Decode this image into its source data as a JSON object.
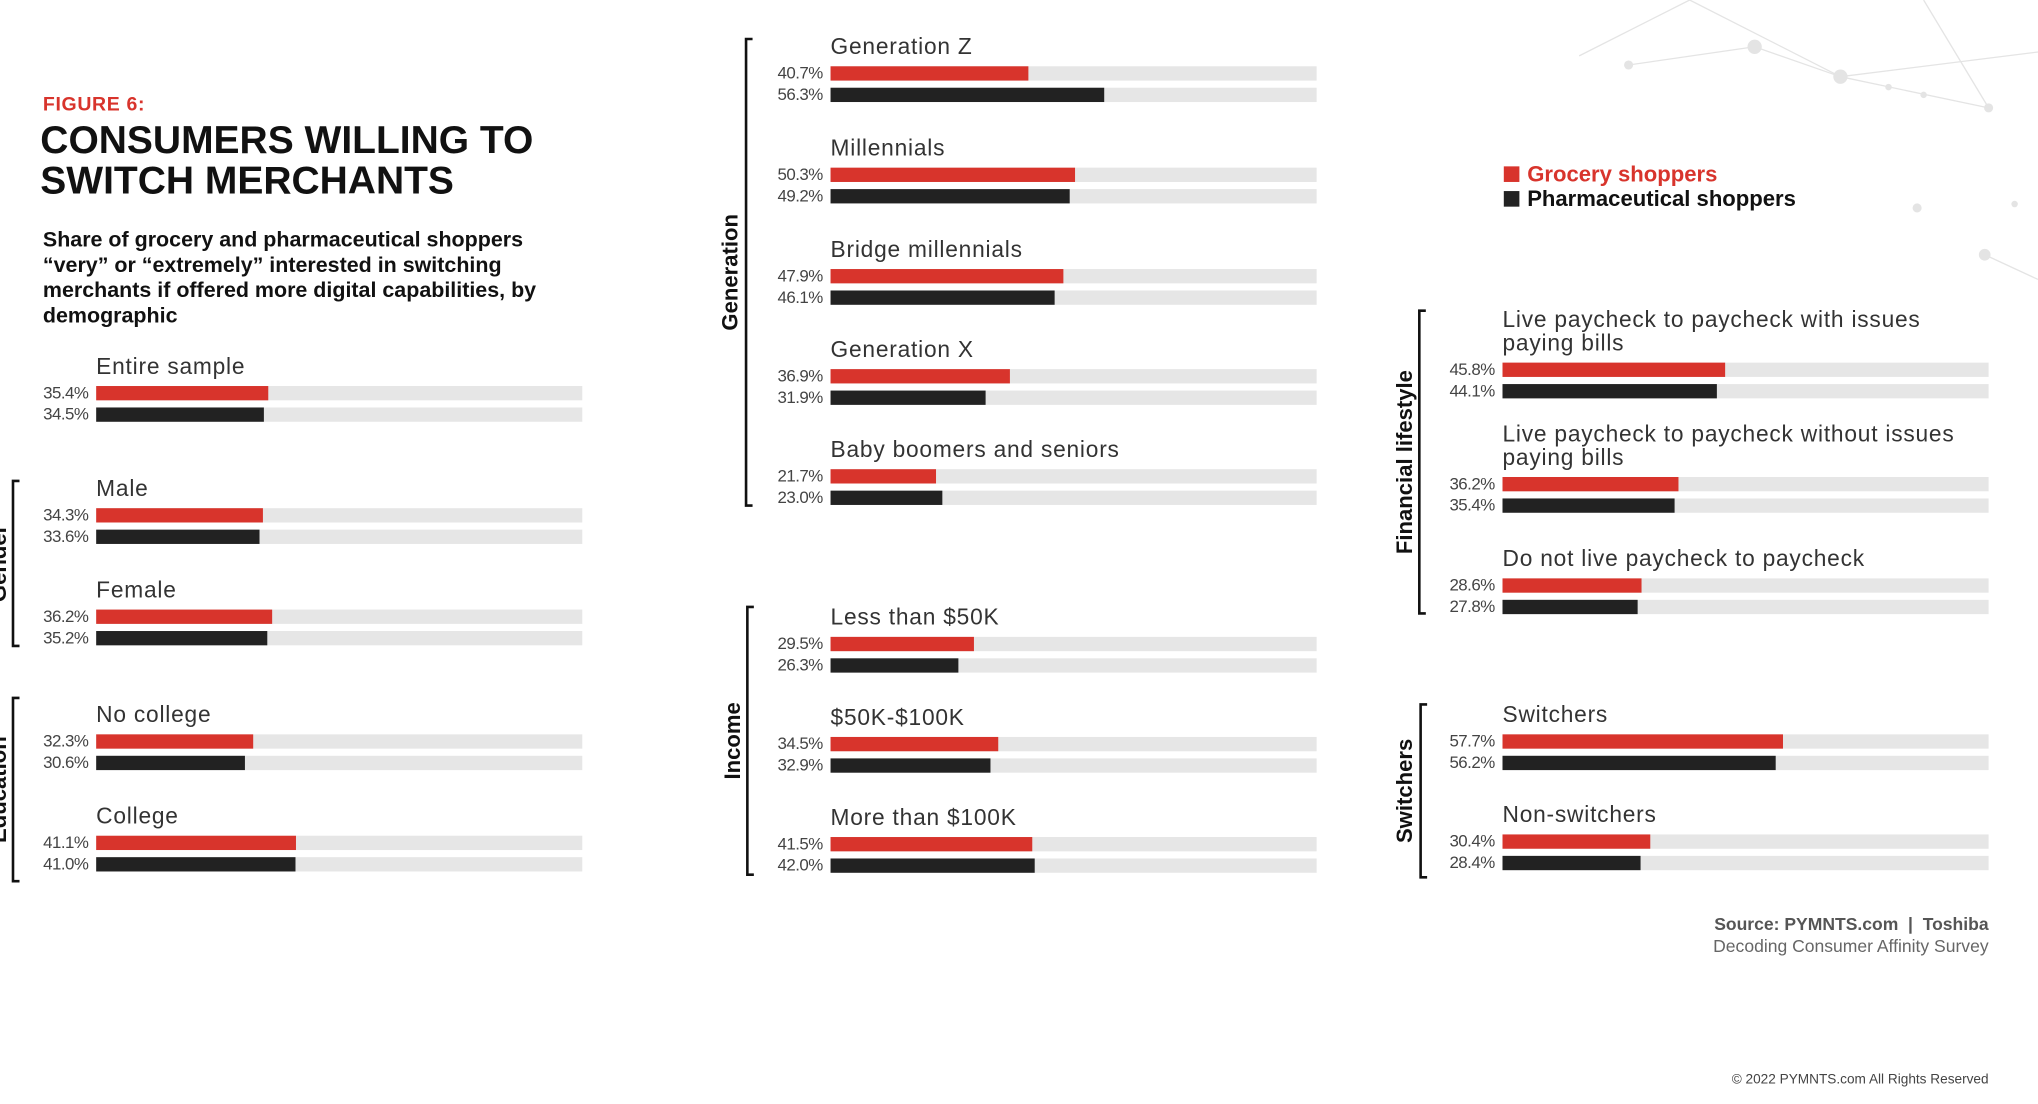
{
  "chart_data": {
    "type": "bar",
    "figure_label": "FIGURE 6:",
    "title": "CONSUMERS WILLING TO SWITCH MERCHANTS",
    "subtitle": "Share of grocery and pharmaceutical shoppers “very” or “extremely” interested in switching merchants if offered more digital capabilities, by demographic",
    "xlim": [
      0,
      100
    ],
    "legend": [
      {
        "name": "Grocery shoppers",
        "color": "#d8342c"
      },
      {
        "name": "Pharmaceutical shoppers",
        "color": "#222222"
      }
    ],
    "groups": [
      {
        "categories": [
          "Entire sample"
        ],
        "series": [
          {
            "values": [
              35.4
            ],
            "value_labels": [
              "35.4%"
            ]
          },
          {
            "values": [
              34.5
            ],
            "value_labels": [
              "34.5%"
            ]
          }
        ]
      },
      {
        "name": "Gender",
        "categories": [
          "Male",
          "Female"
        ],
        "series": [
          {
            "values": [
              34.3,
              36.2
            ],
            "value_labels": [
              "34.3%",
              "36.2%"
            ]
          },
          {
            "values": [
              33.6,
              35.2
            ],
            "value_labels": [
              "33.6%",
              "35.2%"
            ]
          }
        ]
      },
      {
        "name": "Education",
        "categories": [
          "No college",
          "College"
        ],
        "series": [
          {
            "values": [
              32.3,
              41.1
            ],
            "value_labels": [
              "32.3%",
              "41.1%"
            ]
          },
          {
            "values": [
              30.6,
              41.0
            ],
            "value_labels": [
              "30.6%",
              "41.0%"
            ]
          }
        ]
      },
      {
        "name": "Generation",
        "categories": [
          "Generation Z",
          "Millennials",
          "Bridge millennials",
          "Generation X",
          "Baby boomers and seniors"
        ],
        "series": [
          {
            "values": [
              40.7,
              50.3,
              47.9,
              36.9,
              21.7
            ],
            "value_labels": [
              "40.7%",
              "50.3%",
              "47.9%",
              "36.9%",
              "21.7%"
            ]
          },
          {
            "values": [
              56.3,
              49.2,
              46.1,
              31.9,
              23.0
            ],
            "value_labels": [
              "56.3%",
              "49.2%",
              "46.1%",
              "31.9%",
              "23.0%"
            ]
          }
        ]
      },
      {
        "name": "Income",
        "categories": [
          "Less than $50K",
          "$50K-$100K",
          "More than $100K"
        ],
        "series": [
          {
            "values": [
              29.5,
              34.5,
              41.5
            ],
            "value_labels": [
              "29.5%",
              "34.5%",
              "41.5%"
            ]
          },
          {
            "values": [
              26.3,
              32.9,
              42.0
            ],
            "value_labels": [
              "26.3%",
              "32.9%",
              "42.0%"
            ]
          }
        ]
      },
      {
        "name": "Financial lifestyle",
        "categories": [
          "Live paycheck to paycheck with issues paying bills",
          "Live paycheck to paycheck without issues paying bills",
          "Do not live paycheck to paycheck"
        ],
        "series": [
          {
            "values": [
              45.8,
              36.2,
              28.6
            ],
            "value_labels": [
              "45.8%",
              "36.2%",
              "28.6%"
            ]
          },
          {
            "values": [
              44.1,
              35.4,
              27.8
            ],
            "value_labels": [
              "44.1%",
              "35.4%",
              "27.8%"
            ]
          }
        ]
      },
      {
        "name": "Switchers",
        "categories": [
          "Switchers",
          "Non-switchers"
        ],
        "series": [
          {
            "values": [
              57.7,
              30.4
            ],
            "value_labels": [
              "57.7%",
              "30.4%"
            ]
          },
          {
            "values": [
              56.2,
              28.4
            ],
            "value_labels": [
              "56.2%",
              "28.4%"
            ]
          }
        ]
      }
    ],
    "source": "Source: PYMNTS.com  |  Toshiba",
    "source_detail": "Decoding Consumer Affinity Survey",
    "copyright": "© 2022 PYMNTS.com All Rights Reserved"
  }
}
